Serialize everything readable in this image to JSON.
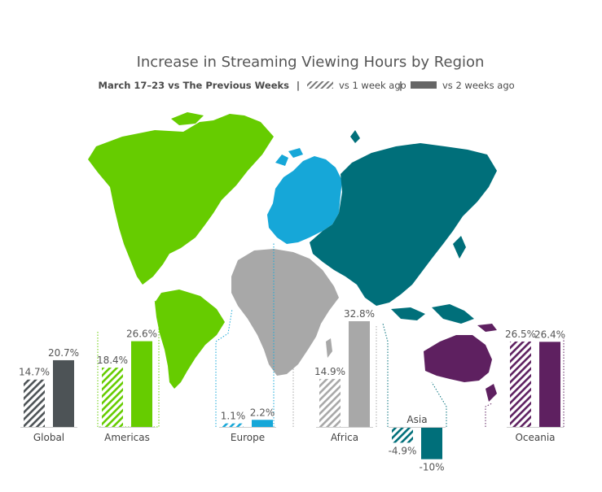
{
  "chart_data": {
    "type": "bar",
    "title": "Increase in Streaming Viewing Hours by Region",
    "subtitle": "March 17–23 vs The Previous Weeks",
    "separator": "|",
    "legend": [
      {
        "name": "vs 1 week ago",
        "pattern": "hatched"
      },
      {
        "name": "vs 2 weeks ago",
        "pattern": "solid"
      }
    ],
    "categories": [
      "Global",
      "Americas",
      "Europe",
      "Africa",
      "Asia",
      "Oceania"
    ],
    "series": [
      {
        "name": "vs 1 week ago",
        "values": [
          14.7,
          18.4,
          1.1,
          14.9,
          -4.9,
          26.5
        ],
        "labels": [
          "14.7%",
          "18.4%",
          "1.1%",
          "14.9%",
          "-4.9%",
          "26.5%"
        ]
      },
      {
        "name": "vs 2 weeks ago",
        "values": [
          20.7,
          26.6,
          2.2,
          32.8,
          -10,
          26.4
        ],
        "labels": [
          "20.7%",
          "26.6%",
          "2.2%",
          "32.8%",
          "-10%",
          "26.4%"
        ]
      }
    ],
    "colors": {
      "Global": "#4d5356",
      "Americas": "#66cc00",
      "Europe": "#16a7d8",
      "Africa": "#a8a8a8",
      "Asia": "#006f7a",
      "Oceania": "#5e2060"
    },
    "map_regions": [
      "Americas",
      "Europe",
      "Africa",
      "Asia",
      "Oceania"
    ]
  }
}
